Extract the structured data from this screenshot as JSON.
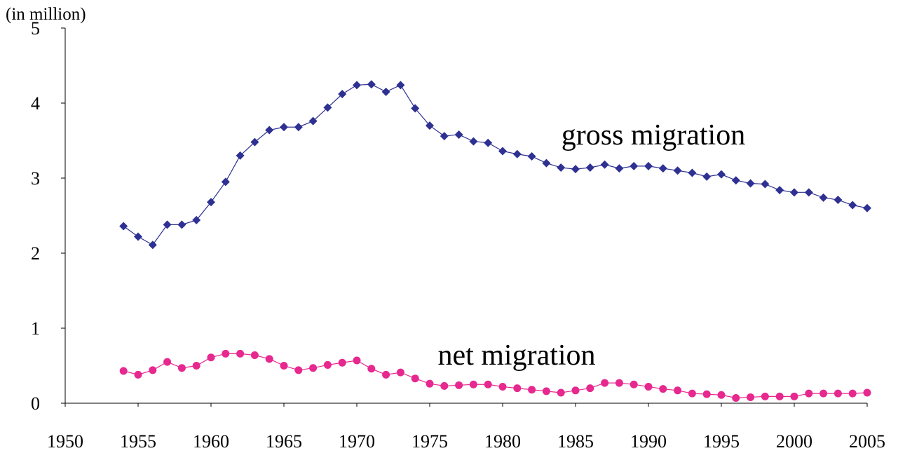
{
  "chart_data": {
    "type": "line",
    "y_unit_label": "(in million)",
    "x": [
      1954,
      1955,
      1956,
      1957,
      1958,
      1959,
      1960,
      1961,
      1962,
      1963,
      1964,
      1965,
      1966,
      1967,
      1968,
      1969,
      1970,
      1971,
      1972,
      1973,
      1974,
      1975,
      1976,
      1977,
      1978,
      1979,
      1980,
      1981,
      1982,
      1983,
      1984,
      1985,
      1986,
      1987,
      1988,
      1989,
      1990,
      1991,
      1992,
      1993,
      1994,
      1995,
      1996,
      1997,
      1998,
      1999,
      2000,
      2001,
      2002,
      2003,
      2004,
      2005
    ],
    "series": [
      {
        "name": "gross migration",
        "color": "#2e3192",
        "marker": "diamond",
        "values": [
          2.36,
          2.22,
          2.11,
          2.38,
          2.38,
          2.44,
          2.68,
          2.95,
          3.3,
          3.48,
          3.64,
          3.68,
          3.68,
          3.76,
          3.94,
          4.12,
          4.24,
          4.25,
          4.15,
          4.24,
          3.93,
          3.7,
          3.56,
          3.58,
          3.49,
          3.47,
          3.36,
          3.32,
          3.29,
          3.2,
          3.14,
          3.12,
          3.14,
          3.18,
          3.13,
          3.16,
          3.16,
          3.13,
          3.1,
          3.07,
          3.02,
          3.05,
          2.97,
          2.93,
          2.92,
          2.84,
          2.81,
          2.81,
          2.74,
          2.71,
          2.64,
          2.6
        ]
      },
      {
        "name": "net migration",
        "color": "#e6288f",
        "marker": "circle",
        "values": [
          0.43,
          0.38,
          0.44,
          0.55,
          0.47,
          0.5,
          0.61,
          0.66,
          0.66,
          0.64,
          0.59,
          0.5,
          0.44,
          0.47,
          0.51,
          0.54,
          0.57,
          0.46,
          0.38,
          0.41,
          0.33,
          0.26,
          0.23,
          0.24,
          0.25,
          0.25,
          0.22,
          0.2,
          0.18,
          0.16,
          0.14,
          0.17,
          0.2,
          0.27,
          0.27,
          0.25,
          0.22,
          0.19,
          0.17,
          0.13,
          0.12,
          0.11,
          0.07,
          0.08,
          0.09,
          0.09,
          0.09,
          0.13,
          0.13,
          0.13,
          0.13,
          0.14
        ]
      }
    ],
    "xlim": [
      1950,
      2005
    ],
    "xticks": [
      1950,
      1955,
      1960,
      1965,
      1970,
      1975,
      1980,
      1985,
      1990,
      1995,
      2000,
      2005
    ],
    "ylim": [
      0,
      5
    ],
    "yticks": [
      0,
      1,
      2,
      3,
      4,
      5
    ],
    "grid": false
  }
}
